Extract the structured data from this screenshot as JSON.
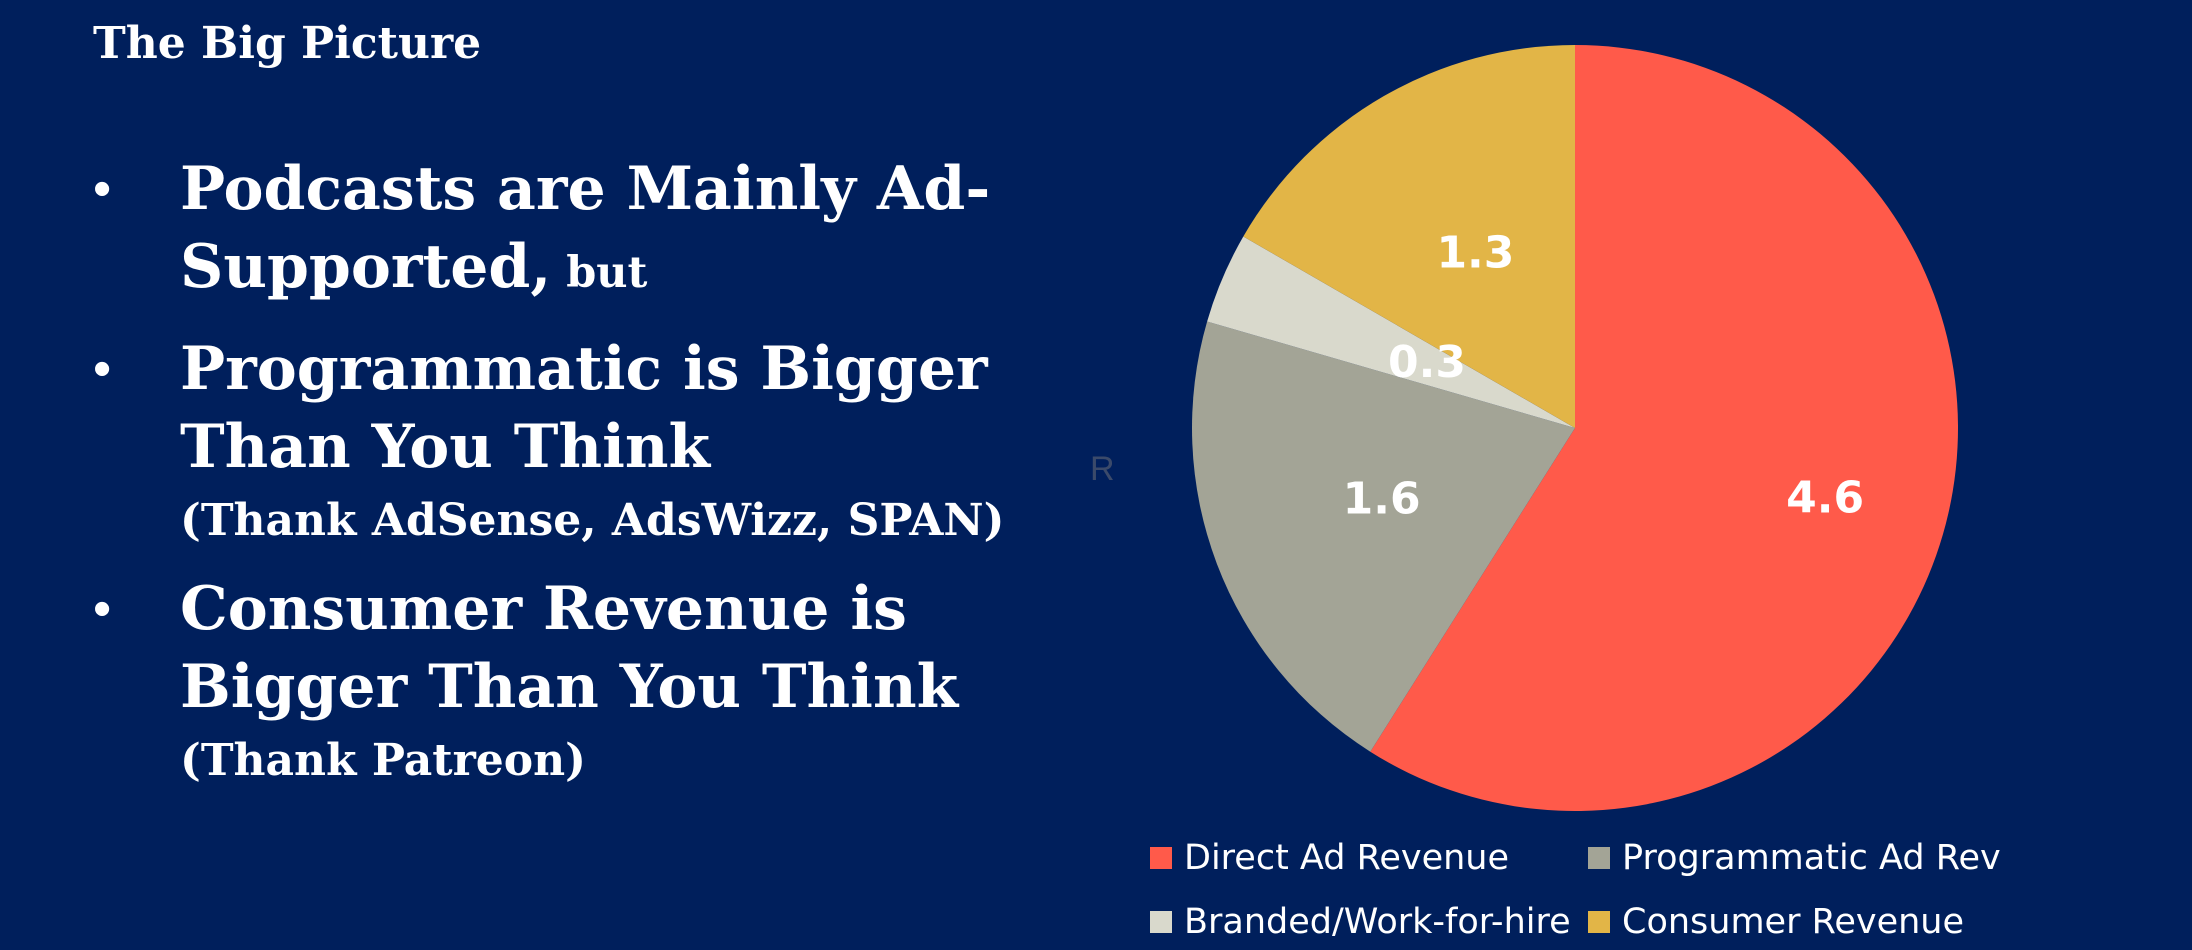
{
  "slide": {
    "title": "The Big Picture",
    "bullets": [
      {
        "main": "Podcasts are Mainly Ad-Supported,",
        "small": " but",
        "sub": ""
      },
      {
        "main": "Programmatic is Bigger Than You Think",
        "small": "",
        "sub": "(Thank AdSense, AdsWizz, SPAN)"
      },
      {
        "main": "Consumer Revenue is Bigger Than You Think",
        "small": "",
        "sub": "(Thank Patreon)"
      }
    ],
    "bullet_glyph": "•",
    "stray_mark": "R"
  },
  "chart_data": {
    "type": "pie",
    "title": "",
    "legend_position": "bottom",
    "slices": [
      {
        "label": "Direct Ad Revenue",
        "value": 4.6,
        "color": "#ff5a4a"
      },
      {
        "label": "Programmatic Ad Rev",
        "value": 1.6,
        "color": "#a3a496"
      },
      {
        "label": "Branded/Work-for-hire",
        "value": 0.3,
        "color": "#d9d9cc"
      },
      {
        "label": "Consumer Revenue",
        "value": 1.3,
        "color": "#e2b547"
      }
    ],
    "data_labels": [
      "4.6",
      "1.6",
      "0.3",
      "1.3"
    ]
  },
  "colors": {
    "background": "#001f5c",
    "text": "#ffffff"
  }
}
